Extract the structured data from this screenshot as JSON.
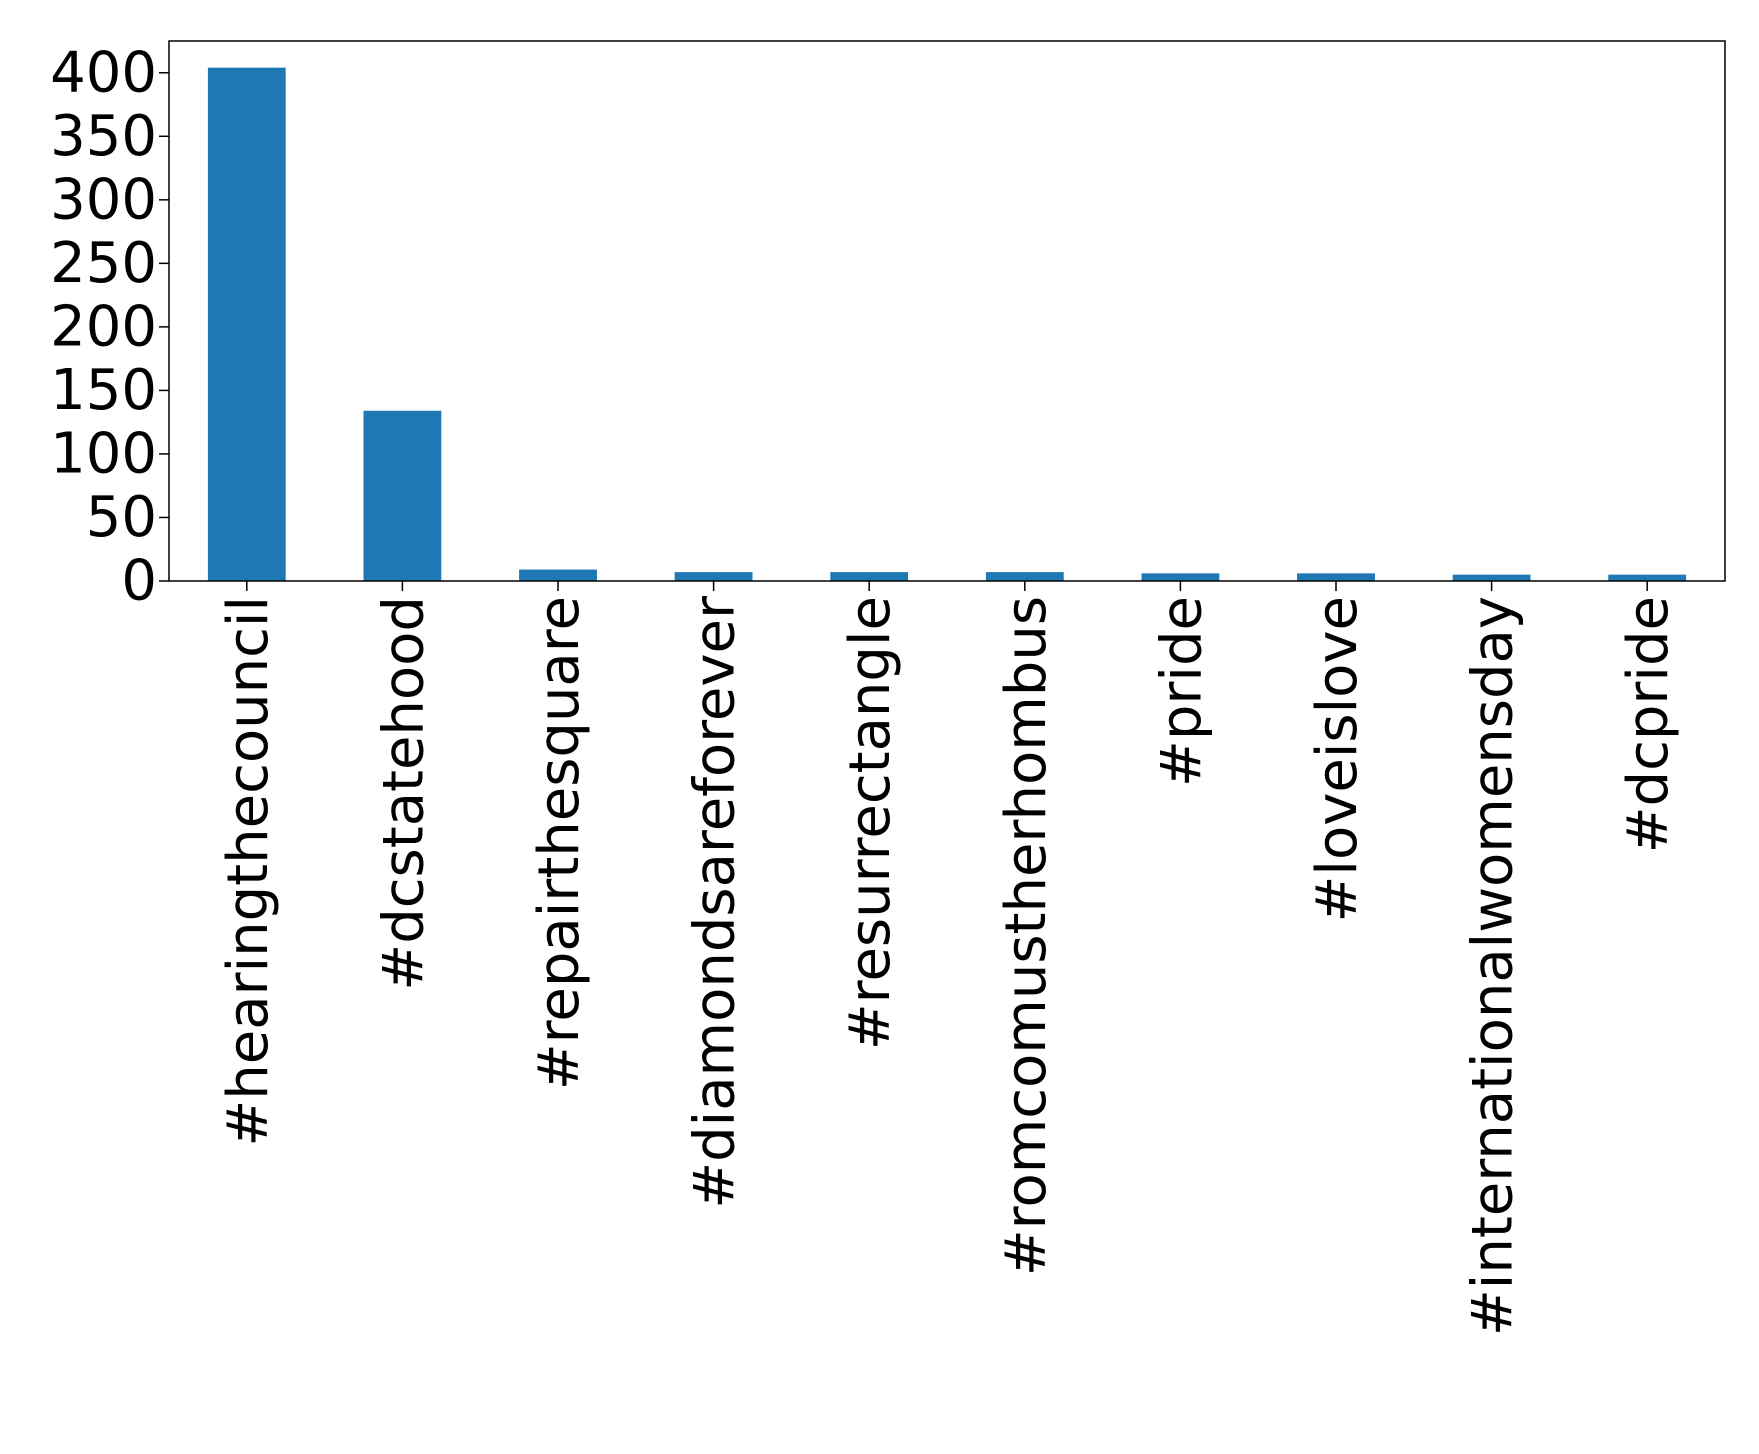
{
  "chart_data": {
    "type": "bar",
    "title": "",
    "xlabel": "",
    "ylabel": "",
    "categories": [
      "#hearingthecouncil",
      "#dcstatehood",
      "#repairthesquare",
      "#diamondsareforever",
      "#resurrectangle",
      "#romcomustherhombus",
      "#pride",
      "#loveislove",
      "#internationalwomensday",
      "#dcpride"
    ],
    "values": [
      404,
      134,
      9,
      7,
      7,
      7,
      6,
      6,
      5,
      5
    ],
    "ylim": [
      0,
      425
    ],
    "yticks": [
      0,
      50,
      100,
      150,
      200,
      250,
      300,
      350,
      400
    ],
    "ytick_labels": [
      "0",
      "50",
      "100",
      "150",
      "200",
      "250",
      "300",
      "350",
      "400"
    ],
    "bar_color": "#1f77b4",
    "grid": false,
    "legend": "none"
  }
}
